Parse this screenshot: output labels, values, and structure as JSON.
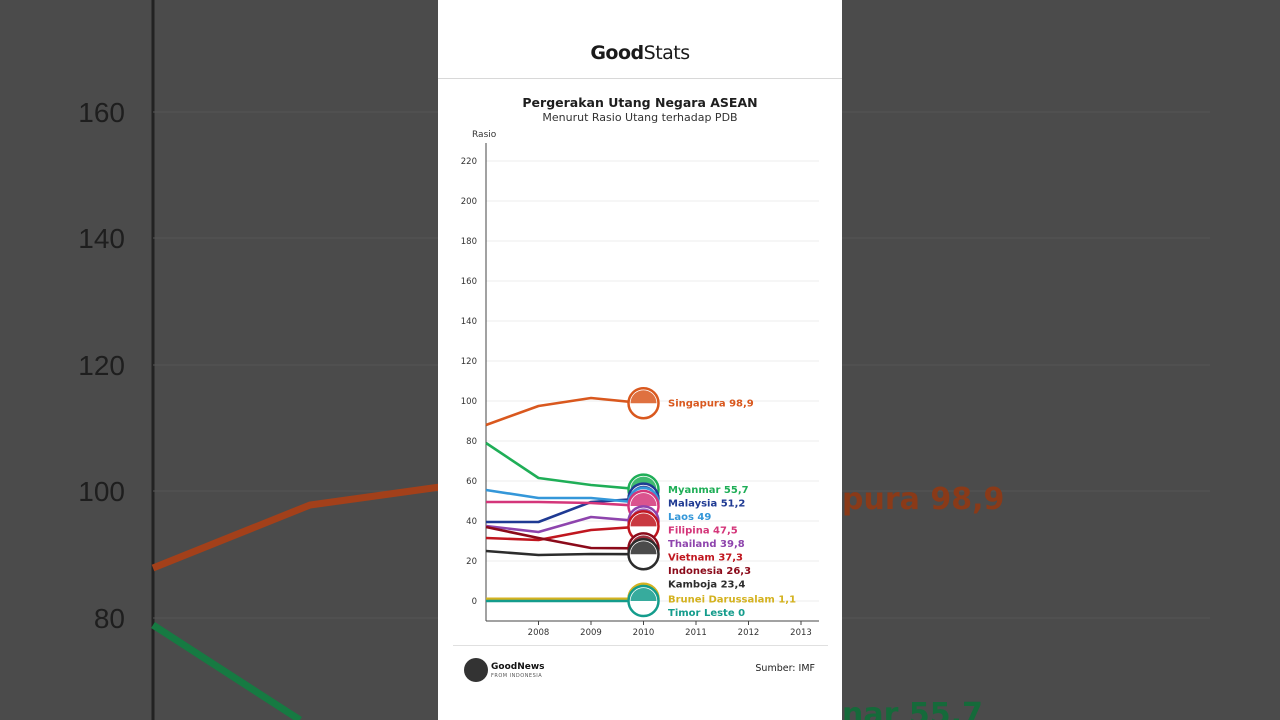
{
  "brand": {
    "logo_bold": "Good",
    "logo_light": "Stats"
  },
  "chart_data": {
    "type": "line",
    "title": "Pergerakan Utang Negara ASEAN",
    "subtitle": "Menurut Rasio Utang terhadap PDB",
    "ylabel": "Rasio",
    "ylim": [
      0,
      230
    ],
    "yticks": [
      0,
      20,
      40,
      60,
      80,
      100,
      120,
      140,
      160,
      180,
      200,
      220
    ],
    "x": [
      2007,
      2008,
      2009,
      2010
    ],
    "xticks": [
      2008,
      2009,
      2010,
      2011,
      2012,
      2013
    ],
    "xlim": [
      2007,
      2013.3
    ],
    "grid": true,
    "series": [
      {
        "name": "Singapura",
        "label": "Singapura 98,9",
        "color": "#d9581e",
        "values": [
          88,
          97.5,
          101.5,
          98.9
        ]
      },
      {
        "name": "Myanmar",
        "label": "Myanmar 55,7",
        "color": "#1fae57",
        "values": [
          79,
          61.5,
          58,
          55.7
        ]
      },
      {
        "name": "Malaysia",
        "label": "Malaysia 51,2",
        "color": "#1f3a93",
        "values": [
          39.5,
          39.5,
          49.5,
          51.2
        ]
      },
      {
        "name": "Laos",
        "label": "Laos 49",
        "color": "#3497d9",
        "values": [
          55.5,
          51.5,
          51.5,
          49
        ]
      },
      {
        "name": "Filipina",
        "label": "Filipina 47,5",
        "color": "#d4367a",
        "values": [
          49.5,
          49.5,
          49,
          47.5
        ]
      },
      {
        "name": "Thailand",
        "label": "Thailand 39,8",
        "color": "#8e44ad",
        "values": [
          37.5,
          34.5,
          42,
          39.8
        ]
      },
      {
        "name": "Vietnam",
        "label": "Vietnam 37,3",
        "color": "#c0161f",
        "values": [
          31.5,
          30.5,
          35.5,
          37.3
        ]
      },
      {
        "name": "Indonesia",
        "label": "Indonesia 26,3",
        "color": "#8b0a1a",
        "values": [
          37,
          31.5,
          26.5,
          26.3
        ]
      },
      {
        "name": "Kamboja",
        "label": "Kamboja 23,4",
        "color": "#2c2c2c",
        "values": [
          25,
          23,
          23.5,
          23.4
        ]
      },
      {
        "name": "Brunei Darussalam",
        "label": "Brunei Darussalam 1,1",
        "color": "#d4b21f",
        "values": [
          1.1,
          1.1,
          1.1,
          1.1
        ]
      },
      {
        "name": "Timor Leste",
        "label": "Timor Leste 0",
        "color": "#149c8c",
        "values": [
          0,
          0,
          0,
          0
        ]
      }
    ]
  },
  "footer": {
    "brand_name": "GoodNews",
    "brand_tagline": "FROM INDONESIA",
    "source": "Sumber: IMF"
  },
  "background": {
    "yticks": [
      "160",
      "140",
      "120",
      "100",
      "80"
    ],
    "label_singapura": "pura 98,9",
    "label_myanmar": "nar 55,7"
  }
}
